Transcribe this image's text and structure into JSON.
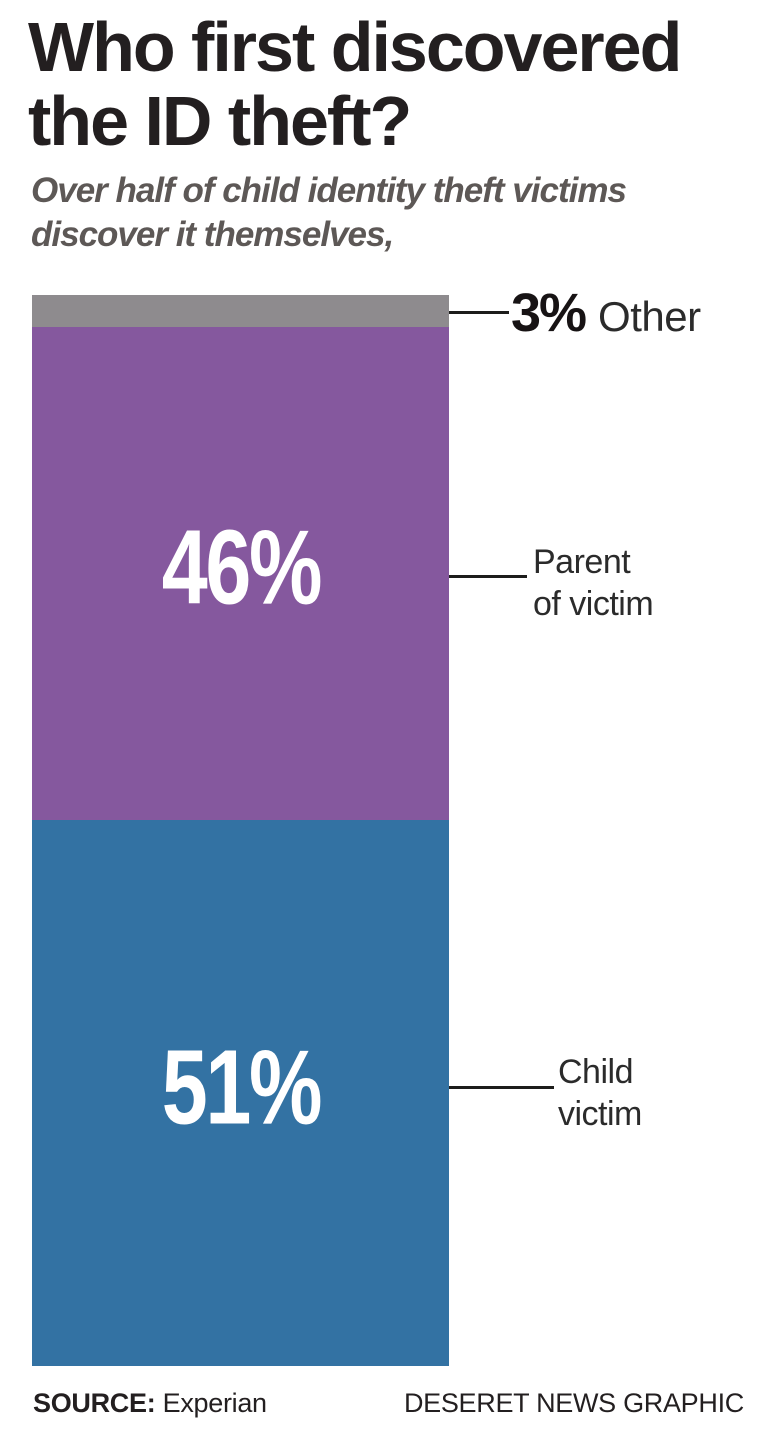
{
  "header": {
    "title": "Who first discovered\nthe ID theft?",
    "subtitle": "Over half of child identity theft victims\ndiscover it themselves,"
  },
  "chart_data": {
    "type": "bar",
    "stacked": true,
    "orientation": "vertical",
    "title": "Who first discovered the ID theft?",
    "subtitle": "Over half of child identity theft victims discover it themselves,",
    "categories": [
      "Other",
      "Parent of victim",
      "Child victim"
    ],
    "values": [
      3,
      46,
      51
    ],
    "unit": "percent",
    "value_labels": [
      "3%",
      "46%",
      "51%"
    ],
    "colors": [
      "#8e8b8e",
      "#85589e",
      "#3372a3"
    ],
    "legend_position": "right-callouts",
    "callouts": [
      {
        "lines": [
          "Other"
        ]
      },
      {
        "lines": [
          "Parent",
          "of victim"
        ]
      },
      {
        "lines": [
          "Child",
          "victim"
        ]
      }
    ],
    "source": "Experian",
    "credit": "DESERET NEWS GRAPHIC"
  },
  "callout_text": {
    "parent": "Parent\nof victim",
    "child": "Child\nvictim"
  },
  "footer": {
    "source_label": "SOURCE:",
    "source_name": " Experian",
    "credit": "DESERET NEWS GRAPHIC"
  }
}
